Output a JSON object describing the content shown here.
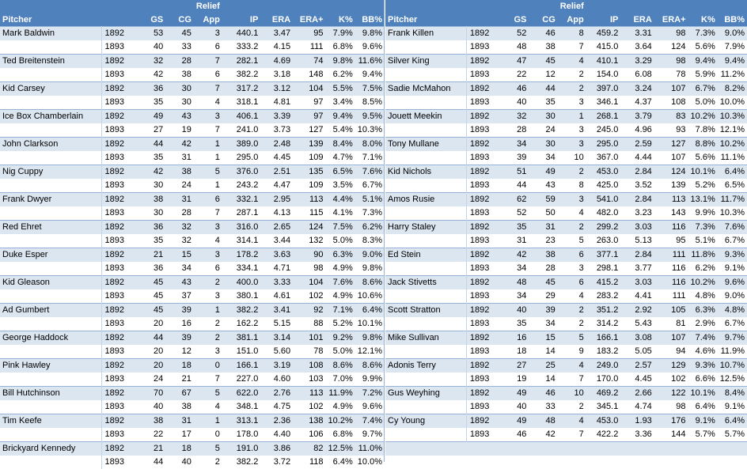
{
  "headers": {
    "relief": "Relief",
    "pitcher": "Pitcher",
    "gs": "GS",
    "cg": "CG",
    "app": "App",
    "ip": "IP",
    "era": "ERA",
    "era_plus": "ERA+",
    "k_pct": "K%",
    "bb_pct": "BB%"
  },
  "left": [
    {
      "name": "Mark Baldwin",
      "rows": [
        [
          "1892",
          "53",
          "45",
          "3",
          "440.1",
          "3.47",
          "95",
          "7.9%",
          "9.8%"
        ],
        [
          "1893",
          "40",
          "33",
          "6",
          "333.2",
          "4.15",
          "111",
          "6.8%",
          "9.6%"
        ]
      ]
    },
    {
      "name": "Ted Breitenstein",
      "rows": [
        [
          "1892",
          "32",
          "28",
          "7",
          "282.1",
          "4.69",
          "74",
          "9.8%",
          "11.6%"
        ],
        [
          "1893",
          "42",
          "38",
          "6",
          "382.2",
          "3.18",
          "148",
          "6.2%",
          "9.4%"
        ]
      ]
    },
    {
      "name": "Kid Carsey",
      "rows": [
        [
          "1892",
          "36",
          "30",
          "7",
          "317.2",
          "3.12",
          "104",
          "5.5%",
          "7.5%"
        ],
        [
          "1893",
          "35",
          "30",
          "4",
          "318.1",
          "4.81",
          "97",
          "3.4%",
          "8.5%"
        ]
      ]
    },
    {
      "name": "Ice Box Chamberlain",
      "rows": [
        [
          "1892",
          "49",
          "43",
          "3",
          "406.1",
          "3.39",
          "97",
          "9.4%",
          "9.5%"
        ],
        [
          "1893",
          "27",
          "19",
          "7",
          "241.0",
          "3.73",
          "127",
          "5.4%",
          "10.3%"
        ]
      ]
    },
    {
      "name": "John Clarkson",
      "rows": [
        [
          "1892",
          "44",
          "42",
          "1",
          "389.0",
          "2.48",
          "139",
          "8.4%",
          "8.0%"
        ],
        [
          "1893",
          "35",
          "31",
          "1",
          "295.0",
          "4.45",
          "109",
          "4.7%",
          "7.1%"
        ]
      ]
    },
    {
      "name": "Nig Cuppy",
      "rows": [
        [
          "1892",
          "42",
          "38",
          "5",
          "376.0",
          "2.51",
          "135",
          "6.5%",
          "7.6%"
        ],
        [
          "1893",
          "30",
          "24",
          "1",
          "243.2",
          "4.47",
          "109",
          "3.5%",
          "6.7%"
        ]
      ]
    },
    {
      "name": "Frank Dwyer",
      "rows": [
        [
          "1892",
          "38",
          "31",
          "6",
          "332.1",
          "2.95",
          "113",
          "4.4%",
          "5.1%"
        ],
        [
          "1893",
          "30",
          "28",
          "7",
          "287.1",
          "4.13",
          "115",
          "4.1%",
          "7.3%"
        ]
      ]
    },
    {
      "name": "Red Ehret",
      "rows": [
        [
          "1892",
          "36",
          "32",
          "3",
          "316.0",
          "2.65",
          "124",
          "7.5%",
          "6.2%"
        ],
        [
          "1893",
          "35",
          "32",
          "4",
          "314.1",
          "3.44",
          "132",
          "5.0%",
          "8.3%"
        ]
      ]
    },
    {
      "name": "Duke Esper",
      "rows": [
        [
          "1892",
          "21",
          "15",
          "3",
          "178.2",
          "3.63",
          "90",
          "6.3%",
          "9.0%"
        ],
        [
          "1893",
          "36",
          "34",
          "6",
          "334.1",
          "4.71",
          "98",
          "4.9%",
          "9.8%"
        ]
      ]
    },
    {
      "name": "Kid Gleason",
      "rows": [
        [
          "1892",
          "45",
          "43",
          "2",
          "400.0",
          "3.33",
          "104",
          "7.6%",
          "8.6%"
        ],
        [
          "1893",
          "45",
          "37",
          "3",
          "380.1",
          "4.61",
          "102",
          "4.9%",
          "10.6%"
        ]
      ]
    },
    {
      "name": "Ad Gumbert",
      "rows": [
        [
          "1892",
          "45",
          "39",
          "1",
          "382.2",
          "3.41",
          "92",
          "7.1%",
          "6.4%"
        ],
        [
          "1893",
          "20",
          "16",
          "2",
          "162.2",
          "5.15",
          "88",
          "5.2%",
          "10.1%"
        ]
      ]
    },
    {
      "name": "George Haddock",
      "rows": [
        [
          "1892",
          "44",
          "39",
          "2",
          "381.1",
          "3.14",
          "101",
          "9.2%",
          "9.8%"
        ],
        [
          "1893",
          "20",
          "12",
          "3",
          "151.0",
          "5.60",
          "78",
          "5.0%",
          "12.1%"
        ]
      ]
    },
    {
      "name": "Pink Hawley",
      "rows": [
        [
          "1892",
          "20",
          "18",
          "0",
          "166.1",
          "3.19",
          "108",
          "8.6%",
          "8.6%"
        ],
        [
          "1893",
          "24",
          "21",
          "7",
          "227.0",
          "4.60",
          "103",
          "7.0%",
          "9.9%"
        ]
      ]
    },
    {
      "name": "Bill Hutchinson",
      "rows": [
        [
          "1892",
          "70",
          "67",
          "5",
          "622.0",
          "2.76",
          "113",
          "11.9%",
          "7.2%"
        ],
        [
          "1893",
          "40",
          "38",
          "4",
          "348.1",
          "4.75",
          "102",
          "4.9%",
          "9.6%"
        ]
      ]
    },
    {
      "name": "Tim Keefe",
      "rows": [
        [
          "1892",
          "38",
          "31",
          "1",
          "313.1",
          "2.36",
          "138",
          "10.2%",
          "7.4%"
        ],
        [
          "1893",
          "22",
          "17",
          "0",
          "178.0",
          "4.40",
          "106",
          "6.8%",
          "9.7%"
        ]
      ]
    },
    {
      "name": "Brickyard Kennedy",
      "rows": [
        [
          "1892",
          "21",
          "18",
          "5",
          "191.0",
          "3.86",
          "82",
          "12.5%",
          "11.0%"
        ],
        [
          "1893",
          "44",
          "40",
          "2",
          "382.2",
          "3.72",
          "118",
          "6.4%",
          "10.0%"
        ]
      ]
    }
  ],
  "right": [
    {
      "name": "Frank Killen",
      "rows": [
        [
          "1892",
          "52",
          "46",
          "8",
          "459.2",
          "3.31",
          "98",
          "7.3%",
          "9.0%"
        ],
        [
          "1893",
          "48",
          "38",
          "7",
          "415.0",
          "3.64",
          "124",
          "5.6%",
          "7.9%"
        ]
      ]
    },
    {
      "name": "Silver King",
      "rows": [
        [
          "1892",
          "47",
          "45",
          "4",
          "410.1",
          "3.29",
          "98",
          "9.4%",
          "9.4%"
        ],
        [
          "1893",
          "22",
          "12",
          "2",
          "154.0",
          "6.08",
          "78",
          "5.9%",
          "11.2%"
        ]
      ]
    },
    {
      "name": "Sadie McMahon",
      "rows": [
        [
          "1892",
          "46",
          "44",
          "2",
          "397.0",
          "3.24",
          "107",
          "6.7%",
          "8.2%"
        ],
        [
          "1893",
          "40",
          "35",
          "3",
          "346.1",
          "4.37",
          "108",
          "5.0%",
          "10.0%"
        ]
      ]
    },
    {
      "name": "Jouett Meekin",
      "rows": [
        [
          "1892",
          "32",
          "30",
          "1",
          "268.1",
          "3.79",
          "83",
          "10.2%",
          "10.3%"
        ],
        [
          "1893",
          "28",
          "24",
          "3",
          "245.0",
          "4.96",
          "93",
          "7.8%",
          "12.1%"
        ]
      ]
    },
    {
      "name": "Tony Mullane",
      "rows": [
        [
          "1892",
          "34",
          "30",
          "3",
          "295.0",
          "2.59",
          "127",
          "8.8%",
          "10.2%"
        ],
        [
          "1893",
          "39",
          "34",
          "10",
          "367.0",
          "4.44",
          "107",
          "5.6%",
          "11.1%"
        ]
      ]
    },
    {
      "name": "Kid Nichols",
      "rows": [
        [
          "1892",
          "51",
          "49",
          "2",
          "453.0",
          "2.84",
          "124",
          "10.1%",
          "6.4%"
        ],
        [
          "1893",
          "44",
          "43",
          "8",
          "425.0",
          "3.52",
          "139",
          "5.2%",
          "6.5%"
        ]
      ]
    },
    {
      "name": "Amos Rusie",
      "rows": [
        [
          "1892",
          "62",
          "59",
          "3",
          "541.0",
          "2.84",
          "113",
          "13.1%",
          "11.7%"
        ],
        [
          "1893",
          "52",
          "50",
          "4",
          "482.0",
          "3.23",
          "143",
          "9.9%",
          "10.3%"
        ]
      ]
    },
    {
      "name": "Harry Staley",
      "rows": [
        [
          "1892",
          "35",
          "31",
          "2",
          "299.2",
          "3.03",
          "116",
          "7.3%",
          "7.6%"
        ],
        [
          "1893",
          "31",
          "23",
          "5",
          "263.0",
          "5.13",
          "95",
          "5.1%",
          "6.7%"
        ]
      ]
    },
    {
      "name": "Ed Stein",
      "rows": [
        [
          "1892",
          "42",
          "38",
          "6",
          "377.1",
          "2.84",
          "111",
          "11.8%",
          "9.3%"
        ],
        [
          "1893",
          "34",
          "28",
          "3",
          "298.1",
          "3.77",
          "116",
          "6.2%",
          "9.1%"
        ]
      ]
    },
    {
      "name": "Jack Stivetts",
      "rows": [
        [
          "1892",
          "48",
          "45",
          "6",
          "415.2",
          "3.03",
          "116",
          "10.2%",
          "9.6%"
        ],
        [
          "1893",
          "34",
          "29",
          "4",
          "283.2",
          "4.41",
          "111",
          "4.8%",
          "9.0%"
        ]
      ]
    },
    {
      "name": "Scott Stratton",
      "rows": [
        [
          "1892",
          "40",
          "39",
          "2",
          "351.2",
          "2.92",
          "105",
          "6.3%",
          "4.8%"
        ],
        [
          "1893",
          "35",
          "34",
          "2",
          "314.2",
          "5.43",
          "81",
          "2.9%",
          "6.7%"
        ]
      ]
    },
    {
      "name": "Mike Sullivan",
      "rows": [
        [
          "1892",
          "16",
          "15",
          "5",
          "166.1",
          "3.08",
          "107",
          "7.4%",
          "9.7%"
        ],
        [
          "1893",
          "18",
          "14",
          "9",
          "183.2",
          "5.05",
          "94",
          "4.6%",
          "11.9%"
        ]
      ]
    },
    {
      "name": "Adonis Terry",
      "rows": [
        [
          "1892",
          "27",
          "25",
          "4",
          "249.0",
          "2.57",
          "129",
          "9.3%",
          "10.7%"
        ],
        [
          "1893",
          "19",
          "14",
          "7",
          "170.0",
          "4.45",
          "102",
          "6.6%",
          "12.5%"
        ]
      ]
    },
    {
      "name": "Gus Weyhing",
      "rows": [
        [
          "1892",
          "49",
          "46",
          "10",
          "469.2",
          "2.66",
          "122",
          "10.1%",
          "8.4%"
        ],
        [
          "1893",
          "40",
          "33",
          "2",
          "345.1",
          "4.74",
          "98",
          "6.4%",
          "9.1%"
        ]
      ]
    },
    {
      "name": "Cy Young",
      "rows": [
        [
          "1892",
          "49",
          "48",
          "4",
          "453.0",
          "1.93",
          "176",
          "9.1%",
          "6.4%"
        ],
        [
          "1893",
          "46",
          "42",
          "7",
          "422.2",
          "3.36",
          "144",
          "5.7%",
          "5.7%"
        ]
      ]
    }
  ]
}
